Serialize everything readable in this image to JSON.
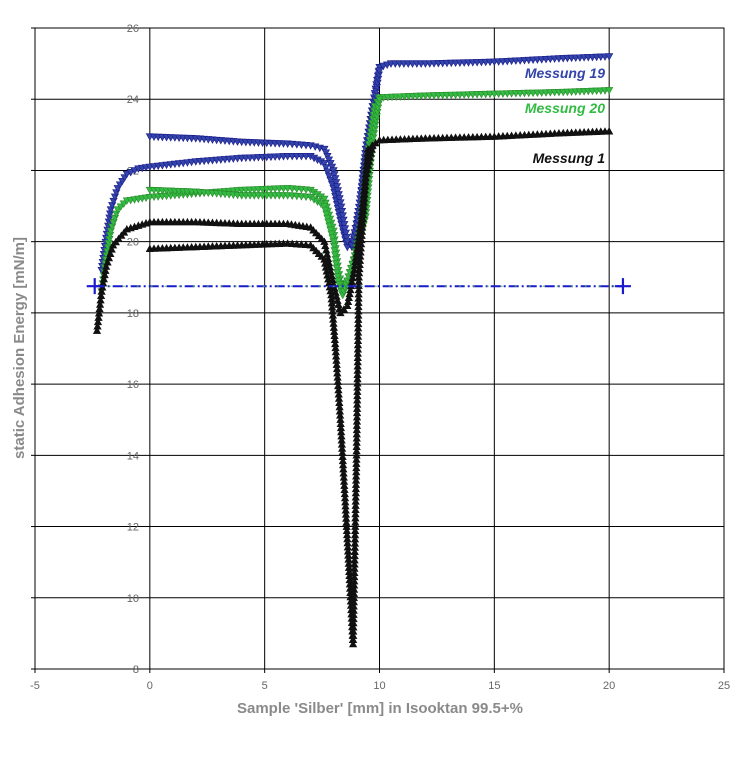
{
  "chart_data": {
    "type": "line",
    "title": "",
    "xlabel": "Sample 'Silber' [mm] in Isooktan 99.5+%",
    "ylabel": "static Adhesion Energy  [mN/m]",
    "xlim": [
      -5,
      25
    ],
    "ylim": [
      8,
      26
    ],
    "xticks": [
      -5,
      0,
      5,
      10,
      15,
      20,
      25
    ],
    "yticks": [
      8,
      10,
      12,
      14,
      16,
      18,
      20,
      22,
      24,
      26
    ],
    "grid": true,
    "legend_position": "right, inline labels",
    "series": [
      {
        "name": "Messung 19",
        "color": "#3344aa",
        "line_color": "#1a1a8a",
        "marker": "triangle-down",
        "label_position": "upper",
        "advance": [
          [
            -2.1,
            19.2
          ],
          [
            -1.9,
            20.1
          ],
          [
            -1.7,
            20.9
          ],
          [
            -1.4,
            21.5
          ],
          [
            -1.0,
            21.9
          ],
          [
            -0.5,
            22.05
          ],
          [
            0,
            22.1
          ],
          [
            2,
            22.25
          ],
          [
            4,
            22.35
          ],
          [
            6,
            22.4
          ],
          [
            7,
            22.4
          ],
          [
            7.6,
            22.2
          ],
          [
            8.0,
            21.5
          ],
          [
            8.3,
            20.6
          ],
          [
            8.6,
            19.85
          ],
          [
            8.8,
            19.85
          ],
          [
            9.0,
            20.3
          ],
          [
            9.2,
            21.3
          ],
          [
            9.4,
            22.6
          ],
          [
            9.7,
            23.8
          ],
          [
            10.0,
            24.9
          ],
          [
            10.5,
            25.0
          ],
          [
            12,
            25.0
          ],
          [
            15,
            25.05
          ],
          [
            18,
            25.15
          ],
          [
            20,
            25.2
          ]
        ],
        "receding": [
          [
            0,
            22.95
          ],
          [
            2,
            22.9
          ],
          [
            4,
            22.8
          ],
          [
            6,
            22.75
          ],
          [
            7,
            22.7
          ],
          [
            7.6,
            22.6
          ],
          [
            8.0,
            22.0
          ],
          [
            8.3,
            21.1
          ],
          [
            8.6,
            20.0
          ],
          [
            8.8,
            19.9
          ],
          [
            9.0,
            20.5
          ],
          [
            9.3,
            21.8
          ],
          [
            9.6,
            23.2
          ],
          [
            10.0,
            24.8
          ]
        ]
      },
      {
        "name": "Messung 20",
        "color": "#33bb44",
        "line_color": "#2a8a2a",
        "marker": "triangle-down",
        "label_position": "middle",
        "advance": [
          [
            -2.1,
            18.6
          ],
          [
            -1.9,
            19.5
          ],
          [
            -1.7,
            20.3
          ],
          [
            -1.4,
            20.9
          ],
          [
            -1.0,
            21.15
          ],
          [
            0,
            21.25
          ],
          [
            2,
            21.35
          ],
          [
            4,
            21.45
          ],
          [
            6,
            21.5
          ],
          [
            7,
            21.45
          ],
          [
            7.6,
            21.2
          ],
          [
            8.0,
            20.3
          ],
          [
            8.2,
            19.2
          ],
          [
            8.4,
            18.6
          ],
          [
            8.6,
            18.9
          ],
          [
            8.9,
            19.5
          ],
          [
            9.2,
            20.5
          ],
          [
            9.5,
            22.5
          ],
          [
            9.8,
            23.8
          ],
          [
            10.0,
            24.05
          ],
          [
            12,
            24.1
          ],
          [
            15,
            24.15
          ],
          [
            18,
            24.2
          ],
          [
            20,
            24.25
          ]
        ],
        "receding": [
          [
            0,
            21.45
          ],
          [
            2,
            21.4
          ],
          [
            4,
            21.3
          ],
          [
            6,
            21.3
          ],
          [
            7,
            21.25
          ],
          [
            7.6,
            21.0
          ],
          [
            8.0,
            20.0
          ],
          [
            8.2,
            18.9
          ],
          [
            8.4,
            18.5
          ],
          [
            8.6,
            18.9
          ],
          [
            9.0,
            19.7
          ],
          [
            9.4,
            20.7
          ],
          [
            9.7,
            22.8
          ],
          [
            10.0,
            24.0
          ]
        ]
      },
      {
        "name": "Messung 1",
        "color": "#111111",
        "line_color": "#111111",
        "marker": "triangle-up",
        "label_position": "lower",
        "advance": [
          [
            -2.3,
            17.5
          ],
          [
            -2.1,
            18.6
          ],
          [
            -1.9,
            19.3
          ],
          [
            -1.6,
            19.9
          ],
          [
            -1.0,
            20.35
          ],
          [
            0,
            20.55
          ],
          [
            2,
            20.55
          ],
          [
            4,
            20.5
          ],
          [
            6,
            20.5
          ],
          [
            7,
            20.4
          ],
          [
            7.6,
            20.0
          ],
          [
            8.0,
            18.8
          ],
          [
            8.3,
            18.0
          ],
          [
            8.6,
            18.2
          ],
          [
            8.9,
            19.2
          ],
          [
            9.2,
            20.6
          ],
          [
            9.5,
            22.6
          ],
          [
            10.0,
            22.85
          ],
          [
            12,
            22.9
          ],
          [
            15,
            22.95
          ],
          [
            18,
            23.05
          ],
          [
            20,
            23.1
          ]
        ],
        "receding": [
          [
            0,
            19.8
          ],
          [
            2,
            19.85
          ],
          [
            4,
            19.9
          ],
          [
            6,
            19.95
          ],
          [
            7,
            19.9
          ],
          [
            7.6,
            19.5
          ],
          [
            7.9,
            18.5
          ],
          [
            8.1,
            16.9
          ],
          [
            8.3,
            15.0
          ],
          [
            8.5,
            12.8
          ],
          [
            8.7,
            10.5
          ],
          [
            8.85,
            8.7
          ],
          [
            9.0,
            14.0
          ],
          [
            9.1,
            19.0
          ],
          [
            9.4,
            21.8
          ],
          [
            9.7,
            22.7
          ]
        ]
      },
      {
        "name": "",
        "color": "#1a1acc",
        "line_color": "#1a1acc",
        "marker": "cross",
        "style": "dash-dot",
        "overlay_color": "#44bb44",
        "advance": [
          [
            -2.4,
            18.75
          ],
          [
            20.6,
            18.75
          ]
        ]
      }
    ]
  }
}
